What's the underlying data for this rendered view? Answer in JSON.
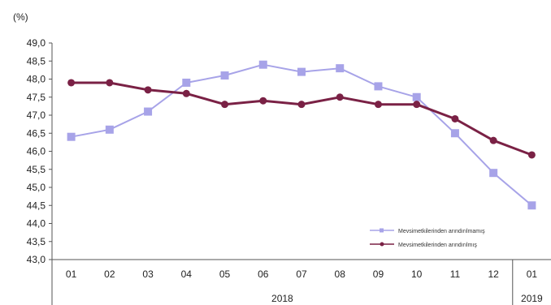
{
  "chart_data": {
    "type": "line",
    "unit_label": "(%)",
    "categories": [
      "01",
      "02",
      "03",
      "04",
      "05",
      "06",
      "07",
      "08",
      "09",
      "10",
      "11",
      "12",
      "01"
    ],
    "year_labels": [
      "2018",
      "2019"
    ],
    "ylim": [
      43.0,
      49.0
    ],
    "y_ticks": [
      "43,0",
      "43,5",
      "44,0",
      "44,5",
      "45,0",
      "45,5",
      "46,0",
      "46,5",
      "47,0",
      "47,5",
      "48,0",
      "48,5",
      "49,0"
    ],
    "grid": false,
    "legend_position": "bottom-right",
    "series": [
      {
        "name": "Mevsimetkilerinden arındırılmamış",
        "color": "#a7a3e8",
        "marker": "square",
        "values": [
          46.4,
          46.6,
          47.1,
          47.9,
          48.1,
          48.4,
          48.2,
          48.3,
          47.8,
          47.5,
          46.5,
          45.4,
          44.5
        ]
      },
      {
        "name": "Mevsimetkilerinden arındırılmış",
        "color": "#7a2145",
        "marker": "circle",
        "values": [
          47.9,
          47.9,
          47.7,
          47.6,
          47.3,
          47.4,
          47.3,
          47.5,
          47.3,
          47.3,
          46.9,
          46.3,
          45.9
        ]
      }
    ]
  }
}
